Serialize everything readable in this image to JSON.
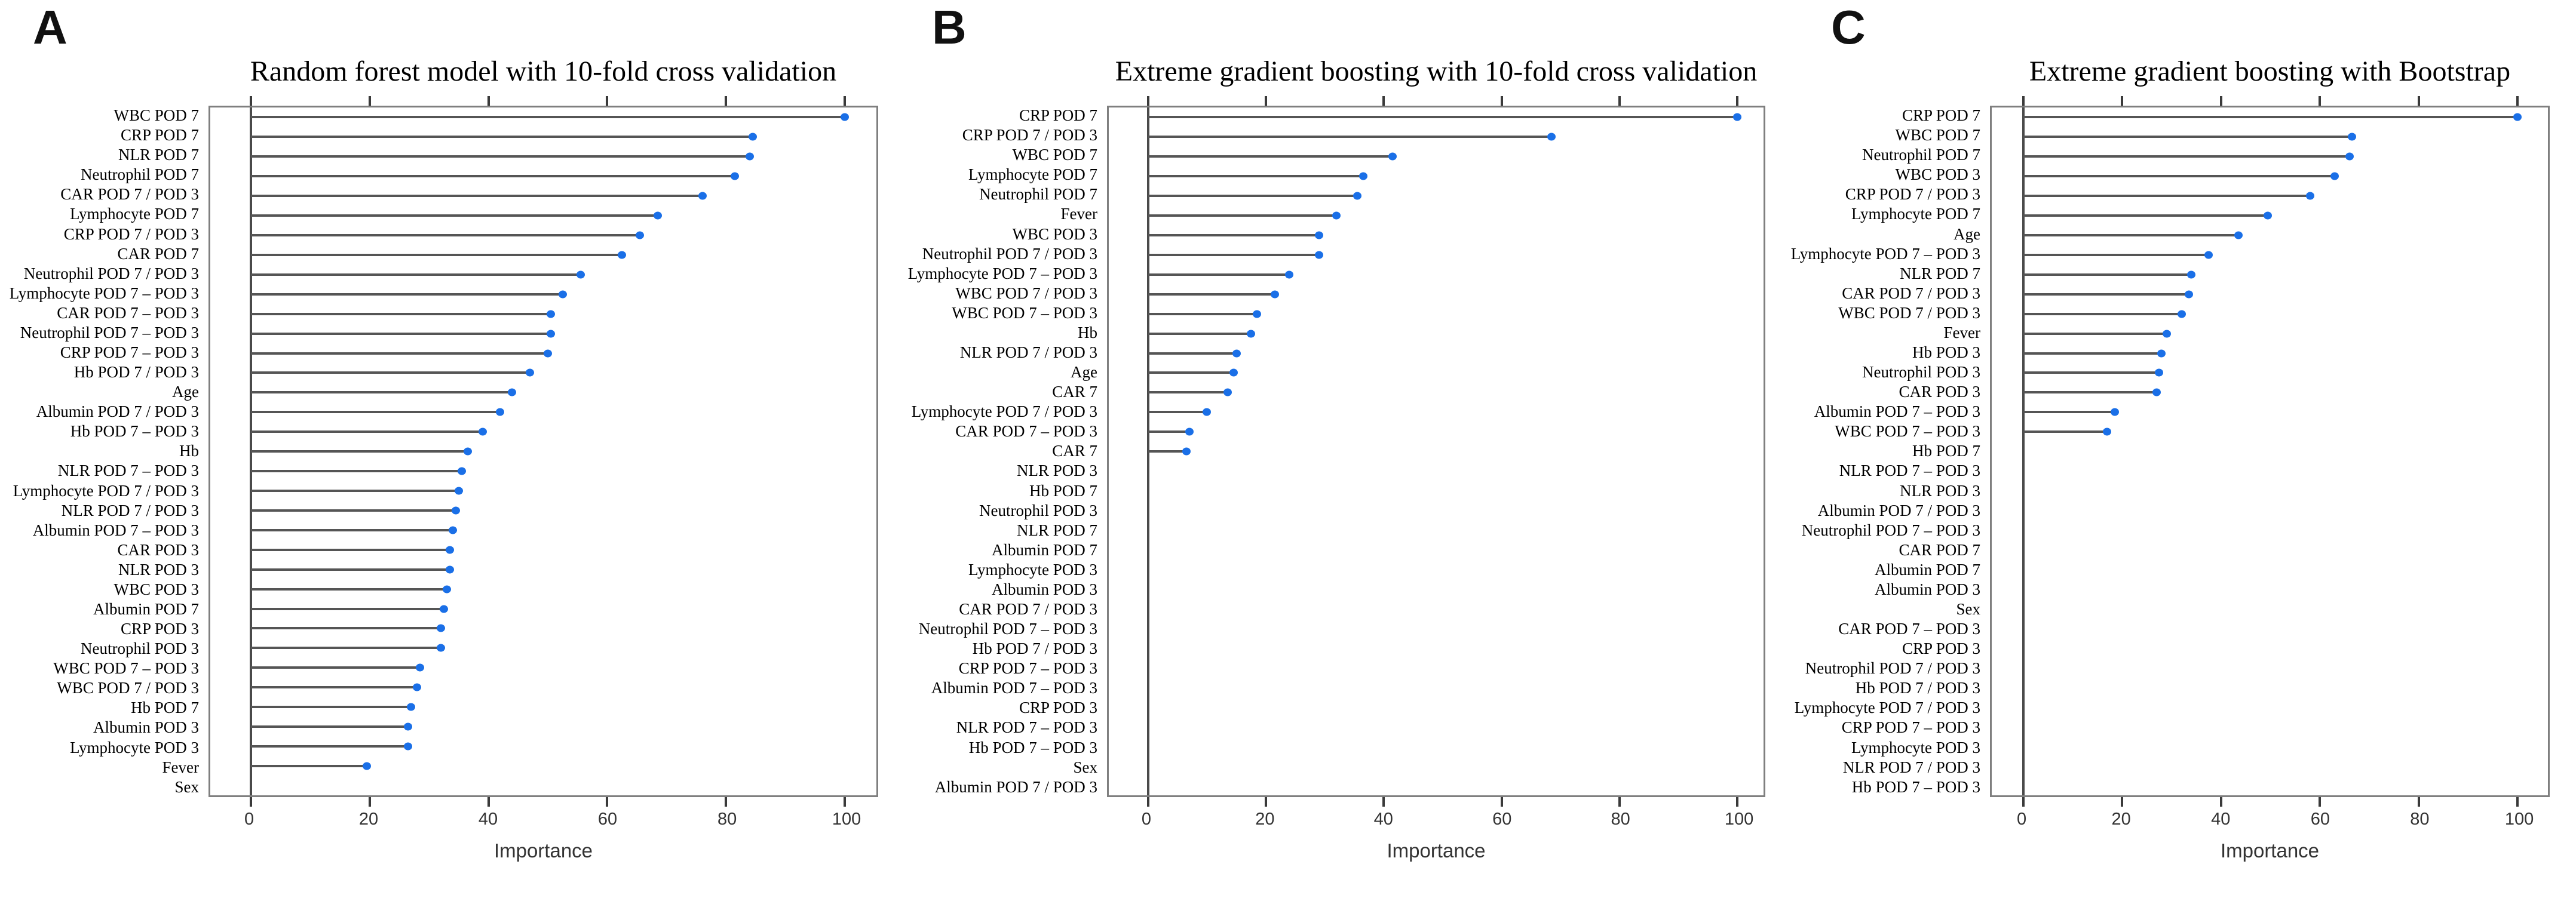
{
  "figure": {
    "panel_letters": [
      "A",
      "B",
      "C"
    ],
    "x_axis": {
      "label": "Importance",
      "ticks": [
        0,
        20,
        40,
        60,
        80,
        100
      ],
      "range": [
        0,
        100
      ]
    },
    "colors": {
      "dot_blue": "#1A6FE7",
      "bar_gray": "#555555",
      "box_border_gray": "#7F7F7F",
      "axis_line_gray": "#4A4A4A",
      "tick_gray": "#3A3A3A",
      "text_black": "#000000",
      "axis_text_gray": "#333333",
      "background": "#FFFFFF"
    }
  },
  "chart_data": [
    {
      "type": "bar",
      "style": "horizontal-lollipop",
      "panel": "A",
      "title": "Random forest model with 10-fold cross validation",
      "xlabel": "Importance",
      "xlim": [
        0,
        100
      ],
      "xticks": [
        0,
        20,
        40,
        60,
        80,
        100
      ],
      "grid": false,
      "categories": [
        "WBC POD 7",
        "CRP POD 7",
        "NLR POD 7",
        "Neutrophil POD 7",
        "CAR POD 7 / POD 3",
        "Lymphocyte POD 7",
        "CRP POD 7 / POD 3",
        "CAR POD 7",
        "Neutrophil POD 7 / POD 3",
        "Lymphocyte POD 7 – POD 3",
        "CAR POD 7 – POD 3",
        "Neutrophil POD 7 – POD 3",
        "CRP POD 7 – POD 3",
        "Hb POD 7 / POD 3",
        "Age",
        "Albumin POD 7 / POD 3",
        "Hb POD 7 – POD 3",
        "Hb",
        "NLR POD 7 – POD 3",
        "Lymphocyte POD 7 / POD 3",
        "NLR POD 7 / POD 3",
        "Albumin POD 7 – POD 3",
        "CAR POD 3",
        "NLR POD 3",
        "WBC POD 3",
        "Albumin POD 7",
        "CRP POD 3",
        "Neutrophil POD 3",
        "WBC POD 7 – POD 3",
        "WBC POD 7 / POD 3",
        "Hb POD 7",
        "Albumin POD 3",
        "Lymphocyte POD 3",
        "Fever",
        "Sex"
      ],
      "values": [
        100,
        84.5,
        84,
        81.5,
        76,
        68.5,
        65.5,
        62.5,
        55.5,
        52.5,
        50.5,
        50.5,
        50,
        47,
        44,
        42,
        39,
        36.5,
        35.5,
        35,
        34.5,
        34,
        33.5,
        33.5,
        33,
        32.5,
        32,
        32,
        28.5,
        28,
        27,
        26.5,
        26.5,
        19.5,
        null
      ]
    },
    {
      "type": "bar",
      "style": "horizontal-lollipop",
      "panel": "B",
      "title": "Extreme gradient boosting with 10-fold cross validation",
      "xlabel": "Importance",
      "xlim": [
        0,
        100
      ],
      "xticks": [
        0,
        20,
        40,
        60,
        80,
        100
      ],
      "grid": false,
      "categories": [
        "CRP POD 7",
        "CRP POD 7 / POD 3",
        "WBC POD 7",
        "Lymphocyte POD 7",
        "Neutrophil POD 7",
        "Fever",
        "WBC POD 3",
        "Neutrophil POD 7 / POD 3",
        "Lymphocyte POD 7 – POD 3",
        "WBC POD 7 / POD 3",
        "WBC POD 7 – POD 3",
        "Hb",
        "NLR POD 7 / POD 3",
        "Age",
        "CAR 7",
        "Lymphocyte POD 7 / POD 3",
        "CAR POD 7 – POD 3",
        "CAR 7",
        "NLR POD 3",
        "Hb POD 7",
        "Neutrophil POD 3",
        "NLR POD 7",
        "Albumin POD 7",
        "Lymphocyte POD 3",
        "Albumin POD 3",
        "CAR POD 7 / POD 3",
        "Neutrophil POD 7 – POD 3",
        "Hb POD 7 / POD 3",
        "CRP POD 7 – POD 3",
        "Albumin POD 7 – POD 3",
        "CRP POD 3",
        "NLR POD 7 – POD 3",
        "Hb POD 7 – POD 3",
        "Sex",
        "Albumin POD 7 / POD 3"
      ],
      "values": [
        100,
        68.5,
        41.5,
        36.5,
        35.5,
        32,
        29,
        29,
        24,
        21.5,
        18.5,
        17.5,
        15,
        14.5,
        13.5,
        10,
        7,
        6.5,
        null,
        null,
        null,
        null,
        null,
        null,
        null,
        null,
        null,
        null,
        null,
        null,
        null,
        null,
        null,
        null,
        null
      ]
    },
    {
      "type": "bar",
      "style": "horizontal-lollipop",
      "panel": "C",
      "title": "Extreme gradient boosting with Bootstrap",
      "xlabel": "Importance",
      "xlim": [
        0,
        100
      ],
      "xticks": [
        0,
        20,
        40,
        60,
        80,
        100
      ],
      "grid": false,
      "categories": [
        "CRP POD 7",
        "WBC POD 7",
        "Neutrophil POD 7",
        "WBC POD 3",
        "CRP POD 7 / POD 3",
        "Lymphocyte POD 7",
        "Age",
        "Lymphocyte POD 7 – POD 3",
        "NLR POD 7",
        "CAR POD 7 / POD 3",
        "WBC POD 7 / POD 3",
        "Fever",
        "Hb POD 3",
        "Neutrophil POD 3",
        "CAR POD 3",
        "Albumin POD 7 – POD 3",
        "WBC POD 7 – POD 3",
        "Hb POD 7",
        "NLR POD 7 – POD 3",
        "NLR POD 3",
        "Albumin POD 7 / POD 3",
        "Neutrophil POD 7 – POD 3",
        "CAR POD 7",
        "Albumin POD 7",
        "Albumin POD 3",
        "Sex",
        "CAR POD 7 – POD 3",
        "CRP POD 3",
        "Neutrophil POD 7 / POD 3",
        "Hb POD 7 / POD 3",
        "Lymphocyte POD 7 / POD 3",
        "CRP POD 7 – POD 3",
        "Lymphocyte POD 3",
        "NLR POD 7 / POD 3",
        "Hb POD 7 – POD 3"
      ],
      "values": [
        100,
        66.5,
        66,
        63,
        58,
        49.5,
        43.5,
        37.5,
        34,
        33.5,
        32,
        29,
        28,
        27.5,
        27,
        18.5,
        17,
        null,
        null,
        null,
        null,
        null,
        null,
        null,
        null,
        null,
        null,
        null,
        null,
        null,
        null,
        null,
        null,
        null,
        null
      ]
    }
  ]
}
